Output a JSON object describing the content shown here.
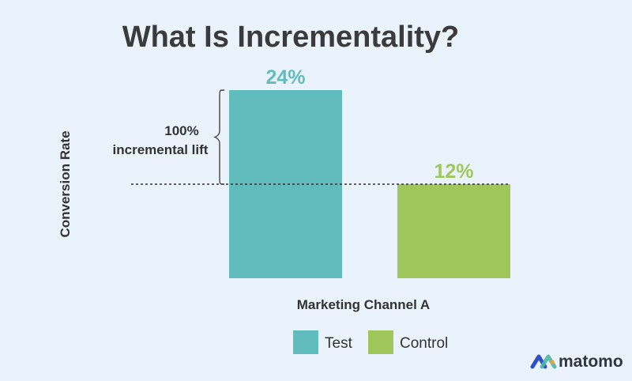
{
  "chart_data": {
    "type": "bar",
    "title": "What Is Incrementality?",
    "xlabel": "Marketing Channel A",
    "ylabel": "Conversion Rate",
    "categories": [
      "Test",
      "Control"
    ],
    "values": [
      24,
      12
    ],
    "value_labels": [
      "24%",
      "12%"
    ],
    "colors": [
      "#61bcbd",
      "#a0c75b"
    ],
    "ylim": [
      0,
      24
    ],
    "grid": false,
    "legend": {
      "position": "bottom",
      "entries": [
        {
          "label": "Test",
          "color": "#61bcbd"
        },
        {
          "label": "Control",
          "color": "#a0c75b"
        }
      ]
    },
    "annotation": {
      "lines": [
        "100%",
        "incremental lift"
      ],
      "reference_value": 12
    }
  },
  "brand": {
    "name": "matomo",
    "colors": [
      "#3050c8",
      "#4fb4a4",
      "#f0a030"
    ]
  }
}
